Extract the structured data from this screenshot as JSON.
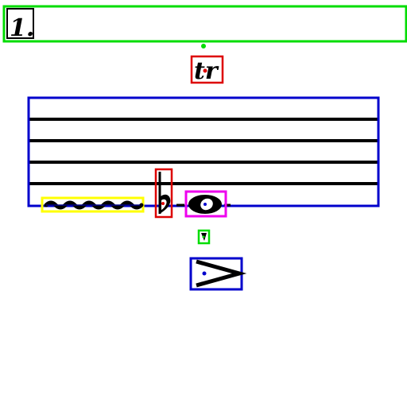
{
  "measure": {
    "number": "1."
  },
  "ornament": {
    "trill_text": "tr"
  },
  "colors": {
    "page_background": "#ffffff",
    "ink": "#000000",
    "box_green": "#00dd00",
    "box_red": "#dd0000",
    "box_blue": "#0000cc",
    "box_yellow": "#ffff00",
    "box_magenta": "#ee00ee"
  },
  "symbols": [
    {
      "name": "measure-number",
      "box_color": "green"
    },
    {
      "name": "trill-mark",
      "box_color": "red"
    },
    {
      "name": "staff",
      "box_color": "blue"
    },
    {
      "name": "trill-wavy-line",
      "box_color": "yellow"
    },
    {
      "name": "flat-accidental",
      "box_color": "red"
    },
    {
      "name": "whole-note",
      "box_color": "magenta"
    },
    {
      "name": "fingering-number",
      "box_color": "green"
    },
    {
      "name": "accent-mark",
      "box_color": "blue"
    }
  ]
}
